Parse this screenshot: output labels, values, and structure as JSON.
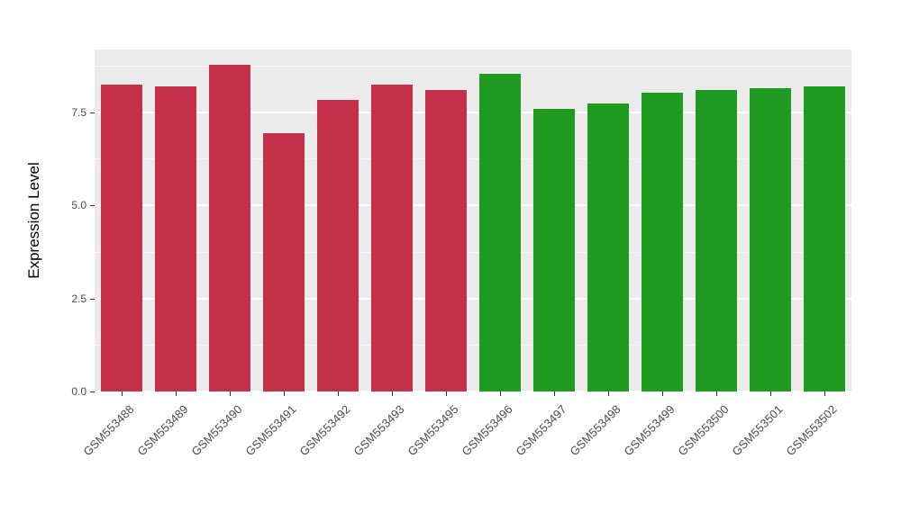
{
  "chart_data": {
    "type": "bar",
    "title": "",
    "xlabel": "",
    "ylabel": "Expression Level",
    "categories": [
      "GSM553488",
      "GSM553489",
      "GSM553490",
      "GSM553491",
      "GSM553492",
      "GSM553493",
      "GSM553495",
      "GSM553496",
      "GSM553497",
      "GSM553498",
      "GSM553499",
      "GSM553500",
      "GSM553501",
      "GSM553502"
    ],
    "values": [
      8.25,
      8.2,
      8.8,
      6.95,
      7.85,
      8.25,
      8.1,
      8.55,
      7.6,
      7.75,
      8.05,
      8.1,
      8.15,
      8.2
    ],
    "groups": [
      "group1",
      "group1",
      "group1",
      "group1",
      "group1",
      "group1",
      "group1",
      "group2",
      "group2",
      "group2",
      "group2",
      "group2",
      "group2",
      "group2"
    ],
    "group_colors": {
      "group1": "#C4314B",
      "group2": "#219A21"
    },
    "yticks": [
      0.0,
      2.5,
      5.0,
      7.5
    ],
    "ytick_labels": [
      "0.0",
      "2.5",
      "5.0",
      "7.5"
    ],
    "minor_yticks": [
      1.25,
      3.75,
      6.25,
      8.75
    ],
    "ylim": [
      0,
      9.2
    ],
    "panel_background": "#EBEBEB",
    "grid_color": "#FFFFFF",
    "legend": "none",
    "grid": "on"
  }
}
